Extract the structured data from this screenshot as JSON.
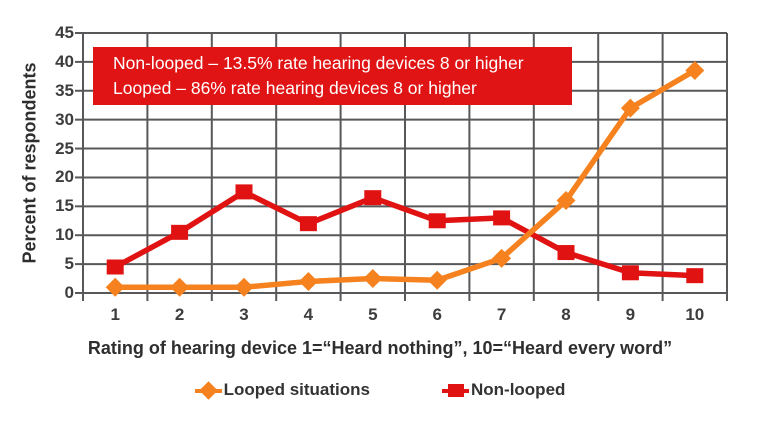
{
  "chart_data": {
    "type": "line",
    "categories": [
      1,
      2,
      3,
      4,
      5,
      6,
      7,
      8,
      9,
      10
    ],
    "series": [
      {
        "name": "Looped situations",
        "marker": "diamond",
        "color": "#f5821f",
        "values": [
          1,
          1,
          1,
          2,
          2.5,
          2.2,
          6,
          16,
          32,
          38.5
        ]
      },
      {
        "name": "Non-looped",
        "marker": "square",
        "color": "#e01212",
        "values": [
          4.5,
          10.5,
          17.5,
          12,
          16.5,
          12.5,
          13,
          7,
          3.5,
          3
        ]
      }
    ],
    "xlabel": "Rating of hearing device 1=“Heard nothing”, 10=“Heard every word”",
    "ylabel": "Percent of respondents",
    "ylim": [
      0,
      45
    ],
    "y_ticks": [
      0,
      5,
      10,
      15,
      20,
      25,
      30,
      35,
      40,
      45
    ],
    "grid": true,
    "grid_color": "#58585a",
    "legend_position": "bottom",
    "annotation": {
      "lines": [
        "Non-looped – 13.5% rate hearing devices 8 or higher",
        "Looped – 86% rate hearing devices 8 or higher"
      ],
      "bg_color": "#e01414",
      "text_color": "#ffffff"
    }
  }
}
